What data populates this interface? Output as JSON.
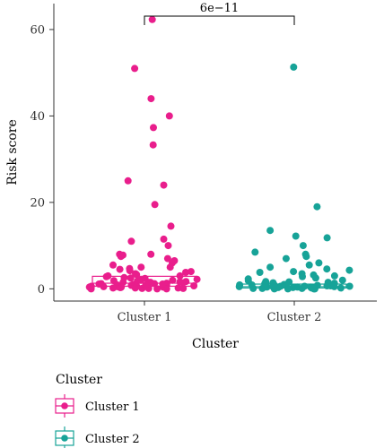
{
  "chart_data": {
    "type": "boxplot-jitter",
    "xlabel": "Cluster",
    "ylabel": "Risk score",
    "categories": [
      "Cluster 1",
      "Cluster 2"
    ],
    "ylim": [
      -2,
      66
    ],
    "yticks": [
      0,
      20,
      40,
      60
    ],
    "grid": false,
    "legend": {
      "title": "Cluster",
      "placement": "bottom-left"
    },
    "annotation": {
      "text": "6e−11",
      "between": [
        "Cluster 1",
        "Cluster 2"
      ]
    },
    "series": [
      {
        "name": "Cluster 1",
        "color": "#E91E8C",
        "box": {
          "q1": 0.6,
          "median": 1.3,
          "q3": 2.9
        },
        "points": [
          62.3,
          51.0,
          44.0,
          40.0,
          37.3,
          33.3,
          25.0,
          24.0,
          19.5,
          14.5,
          11.5,
          11.0,
          10.0,
          8.0,
          8.0,
          7.8,
          7.5,
          7.0,
          6.5,
          6.0,
          5.5,
          5.0,
          5.0,
          4.7,
          4.5,
          4.2,
          4.0,
          3.8,
          3.5,
          3.3,
          3.0,
          3.0,
          2.8,
          2.6,
          2.5,
          2.4,
          2.2,
          2.0,
          2.0,
          1.9,
          1.8,
          1.7,
          1.6,
          1.5,
          1.5,
          1.4,
          1.3,
          1.2,
          1.2,
          1.1,
          1.0,
          1.0,
          0.9,
          0.9,
          0.8,
          0.8,
          0.7,
          0.7,
          0.6,
          0.6,
          0.5,
          0.5,
          0.4,
          0.4,
          0.3,
          0.3,
          0.2,
          0.2,
          0.2,
          0.1,
          0.1,
          0.1,
          0.0,
          0.0,
          0.0,
          1.5,
          2.0,
          0.8,
          1.1,
          0.4
        ]
      },
      {
        "name": "Cluster 2",
        "color": "#17A398",
        "box": {
          "q1": 0.2,
          "median": 0.5,
          "q3": 1.1
        },
        "points": [
          51.3,
          19.0,
          13.5,
          12.2,
          11.8,
          10.0,
          8.5,
          8.0,
          7.5,
          7.0,
          6.0,
          5.5,
          5.0,
          4.6,
          4.3,
          4.0,
          3.8,
          3.5,
          3.2,
          3.0,
          2.8,
          2.5,
          2.3,
          2.0,
          1.9,
          1.7,
          1.6,
          1.5,
          1.4,
          1.3,
          1.2,
          1.1,
          1.0,
          1.0,
          0.9,
          0.8,
          0.8,
          0.7,
          0.7,
          0.6,
          0.6,
          0.5,
          0.5,
          0.5,
          0.4,
          0.4,
          0.4,
          0.3,
          0.3,
          0.3,
          0.2,
          0.2,
          0.2,
          0.1,
          0.1,
          0.1,
          0.0,
          0.0,
          0.0,
          0.0,
          0.3,
          0.6,
          1.2,
          0.2,
          0.9
        ]
      }
    ]
  }
}
